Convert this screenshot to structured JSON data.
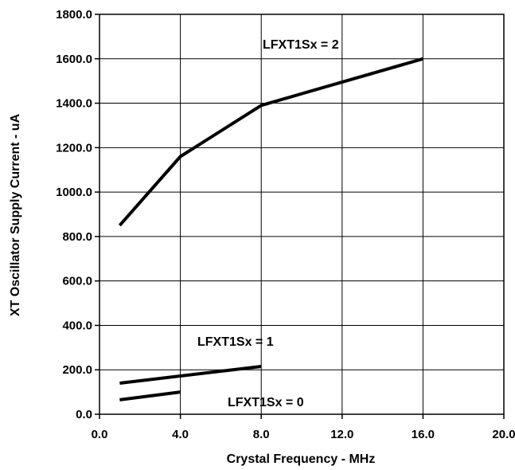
{
  "chart_data": {
    "type": "line",
    "title": "",
    "xlabel": "Crystal Frequency - MHz",
    "ylabel": "XT Oscillator Supply Current  - uA",
    "xlim": [
      0,
      20
    ],
    "ylim": [
      0,
      1800
    ],
    "x_ticks": [
      "0.0",
      "4.0",
      "8.0",
      "12.0",
      "16.0",
      "20.0"
    ],
    "y_ticks": [
      "0.0",
      "200.0",
      "400.0",
      "600.0",
      "800.0",
      "1000.0",
      "1200.0",
      "1400.0",
      "1600.0",
      "1800.0"
    ],
    "grid": true,
    "series": [
      {
        "name": "LFXT1Sx = 2",
        "x": [
          1,
          4,
          8,
          16
        ],
        "y": [
          850,
          1160,
          1390,
          1600
        ]
      },
      {
        "name": "LFXT1Sx = 1",
        "x": [
          1,
          8
        ],
        "y": [
          140,
          215
        ]
      },
      {
        "name": "LFXT1Sx = 0",
        "x": [
          1,
          4
        ],
        "y": [
          65,
          100
        ]
      }
    ],
    "line_color": "#000000"
  }
}
